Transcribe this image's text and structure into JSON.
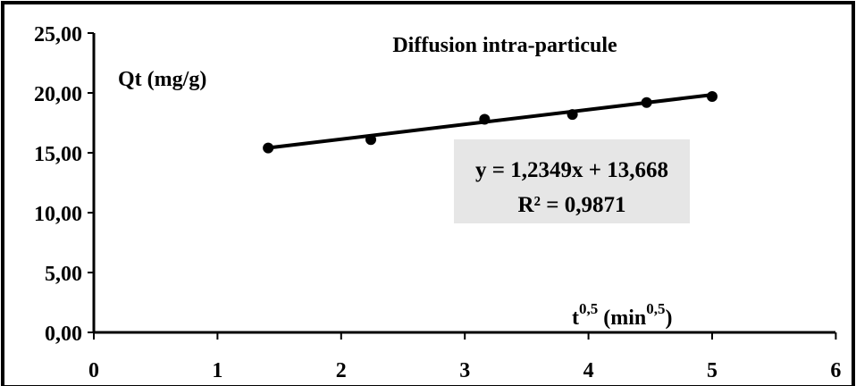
{
  "chart_data": {
    "type": "scatter",
    "title": "Diffusion intra-particule",
    "ylabel": "Qt (mg/g)",
    "xlabel_base": "t",
    "xlabel_exp": "0,5",
    "xlabel_unit_open": " (min",
    "xlabel_unit_exp": "0,5",
    "xlabel_unit_close": ")",
    "xlim": [
      0,
      6
    ],
    "ylim": [
      0,
      25
    ],
    "x_ticks": [
      {
        "value": 0,
        "label": "0"
      },
      {
        "value": 1,
        "label": "1"
      },
      {
        "value": 2,
        "label": "2"
      },
      {
        "value": 3,
        "label": "3"
      },
      {
        "value": 4,
        "label": "4"
      },
      {
        "value": 5,
        "label": "5"
      },
      {
        "value": 6,
        "label": "6"
      }
    ],
    "y_ticks": [
      {
        "value": 0,
        "label": "0,00"
      },
      {
        "value": 5,
        "label": "5,00"
      },
      {
        "value": 10,
        "label": "10,00"
      },
      {
        "value": 15,
        "label": "15,00"
      },
      {
        "value": 20,
        "label": "20,00"
      },
      {
        "value": 25,
        "label": "25,00"
      }
    ],
    "series": [
      {
        "points": [
          {
            "x": 1.41,
            "y": 15.4
          },
          {
            "x": 2.24,
            "y": 16.1
          },
          {
            "x": 3.16,
            "y": 17.8
          },
          {
            "x": 3.87,
            "y": 18.2
          },
          {
            "x": 4.47,
            "y": 19.2
          },
          {
            "x": 5.0,
            "y": 19.7
          }
        ],
        "color": "#000000"
      }
    ],
    "trendline": {
      "slope": 1.2349,
      "intercept": 13.668,
      "x_range": [
        1.41,
        5.0
      ],
      "equation": "y = 1,2349x + 13,668",
      "r2": "R² = 0,9871",
      "box_color": "#e6e6e6"
    },
    "grid": false
  }
}
